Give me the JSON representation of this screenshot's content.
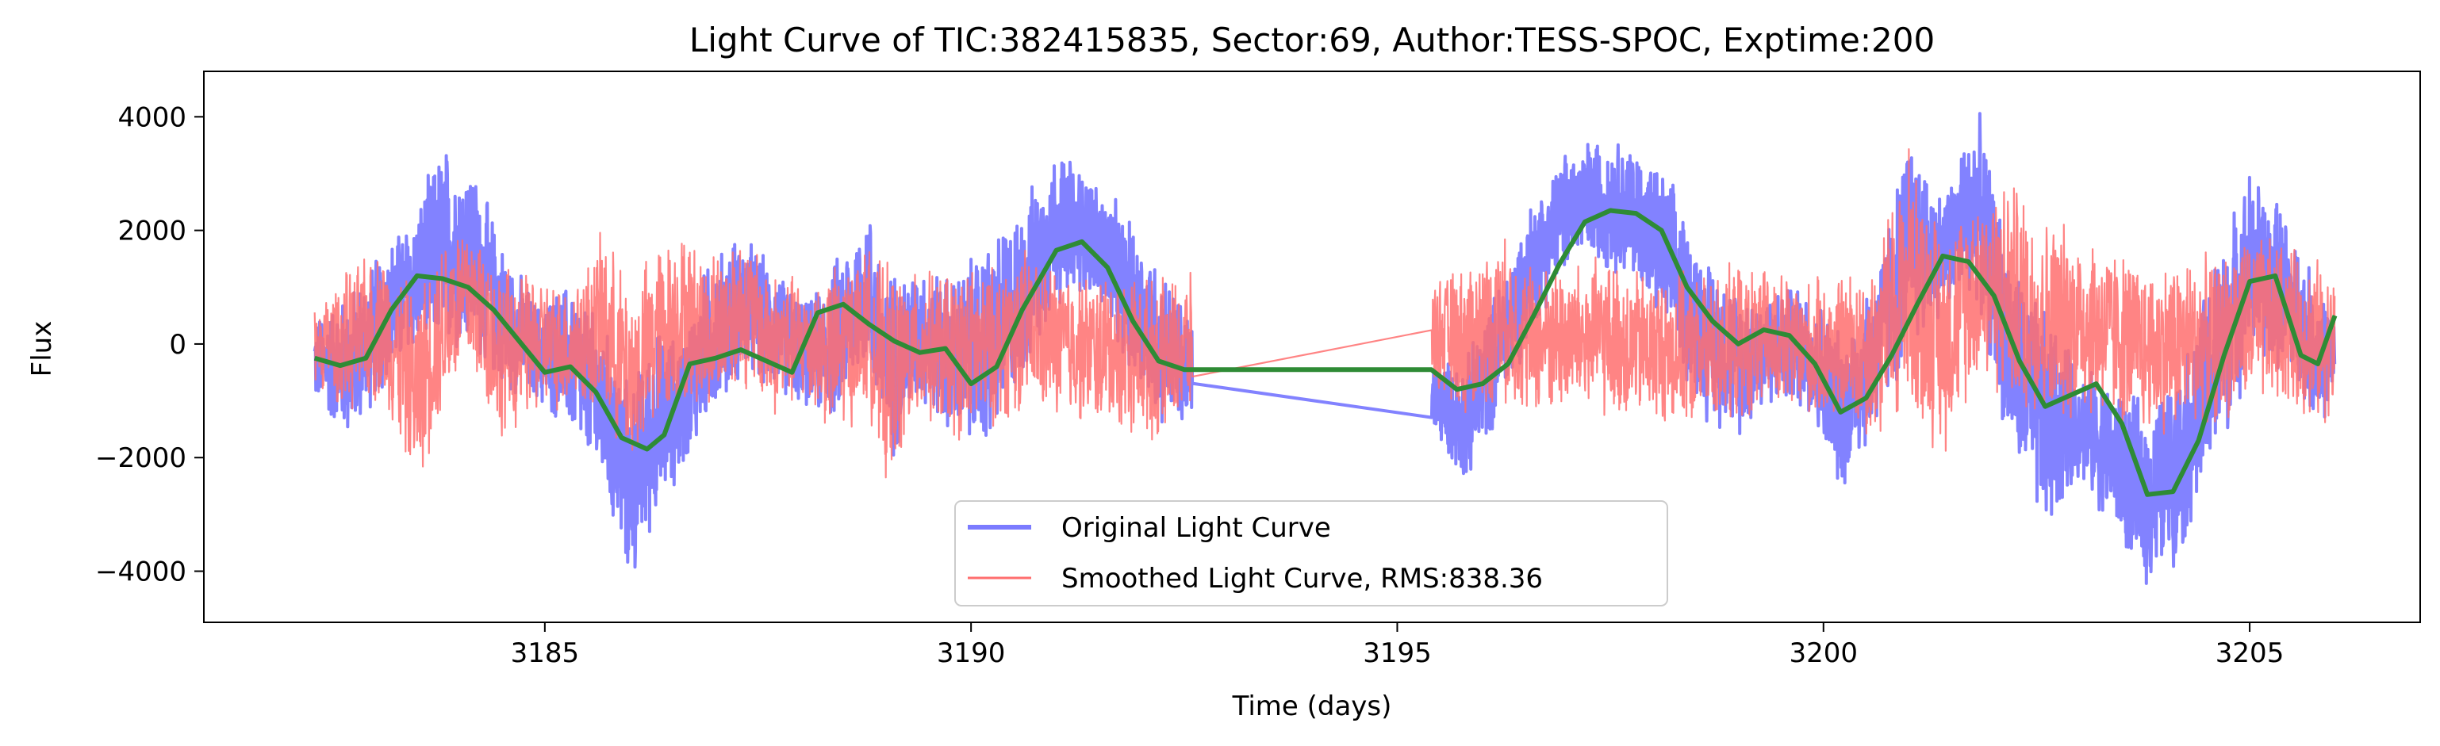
{
  "chart_data": {
    "type": "line",
    "title": "Light Curve of TIC:382415835, Sector:69, Author:TESS-SPOC, Exptime:200",
    "xlabel": "Time (days)",
    "ylabel": "Flux",
    "xlim": [
      3181.0,
      3207.0
    ],
    "ylim": [
      -4900,
      4800
    ],
    "x_ticks": [
      3185,
      3190,
      3195,
      3200,
      3205
    ],
    "x_tick_labels": [
      "3185",
      "3190",
      "3195",
      "3200",
      "3205"
    ],
    "y_ticks": [
      -4000,
      -2000,
      0,
      2000,
      4000
    ],
    "y_tick_labels": [
      "−4000",
      "−2000",
      "0",
      "2000",
      "4000"
    ],
    "grid": false,
    "legend_position": "bottom-center",
    "series": [
      {
        "name": "Original Light Curve",
        "color": "#7b7bff",
        "envelope": [
          [
            3182.3,
            -1100,
            500
          ],
          [
            3182.7,
            -1800,
            1000
          ],
          [
            3183.1,
            -900,
            1800
          ],
          [
            3183.5,
            -200,
            2500
          ],
          [
            3183.8,
            -300,
            3700
          ],
          [
            3184.1,
            -200,
            3500
          ],
          [
            3184.5,
            -900,
            1900
          ],
          [
            3184.9,
            -1100,
            800
          ],
          [
            3185.3,
            -1700,
            1200
          ],
          [
            3185.7,
            -2800,
            400
          ],
          [
            3186.0,
            -4400,
            -600
          ],
          [
            3186.3,
            -3200,
            400
          ],
          [
            3186.6,
            -2400,
            200
          ],
          [
            3186.9,
            -1500,
            1500
          ],
          [
            3187.3,
            -700,
            2100
          ],
          [
            3187.7,
            -900,
            1400
          ],
          [
            3188.1,
            -1200,
            800
          ],
          [
            3188.4,
            -1500,
            1600
          ],
          [
            3188.8,
            -400,
            2500
          ],
          [
            3189.0,
            -2400,
            1400
          ],
          [
            3189.4,
            -1100,
            1500
          ],
          [
            3189.8,
            -1800,
            1300
          ],
          [
            3190.2,
            -2100,
            2000
          ],
          [
            3190.6,
            -800,
            2600
          ],
          [
            3191.0,
            600,
            3600
          ],
          [
            3191.4,
            800,
            3100
          ],
          [
            3191.8,
            -400,
            2400
          ],
          [
            3192.2,
            -1500,
            1600
          ],
          [
            3192.6,
            -1700,
            500
          ],
          [
            3195.4,
            -1500,
            -300
          ],
          [
            3195.8,
            -2600,
            -200
          ],
          [
            3196.2,
            -1300,
            1200
          ],
          [
            3196.6,
            200,
            2700
          ],
          [
            3197.0,
            1300,
            3500
          ],
          [
            3197.4,
            1300,
            3800
          ],
          [
            3197.8,
            1000,
            3600
          ],
          [
            3198.2,
            -200,
            3000
          ],
          [
            3198.6,
            -1400,
            1700
          ],
          [
            3199.0,
            -1700,
            1100
          ],
          [
            3199.4,
            -1100,
            1000
          ],
          [
            3199.8,
            -1300,
            1200
          ],
          [
            3200.2,
            -2700,
            300
          ],
          [
            3200.6,
            -1700,
            1400
          ],
          [
            3201.0,
            -400,
            3900
          ],
          [
            3201.4,
            500,
            2700
          ],
          [
            3201.8,
            700,
            4300
          ],
          [
            3202.2,
            -2200,
            1700
          ],
          [
            3202.6,
            -3600,
            700
          ],
          [
            3203.0,
            -2400,
            -300
          ],
          [
            3203.4,
            -3400,
            -600
          ],
          [
            3203.8,
            -4400,
            -1000
          ],
          [
            3204.2,
            -3800,
            -300
          ],
          [
            3204.6,
            -2400,
            1700
          ],
          [
            3205.0,
            -400,
            3200
          ],
          [
            3205.4,
            -600,
            2500
          ],
          [
            3205.8,
            -1500,
            1100
          ],
          [
            3206.0,
            -1200,
            600
          ]
        ]
      },
      {
        "name": "Smoothed Light Curve, RMS:838.36",
        "color": "#ff6e6e",
        "envelope": [
          [
            3182.3,
            -700,
            700
          ],
          [
            3182.7,
            -1300,
            1400
          ],
          [
            3183.1,
            -1100,
            1800
          ],
          [
            3183.5,
            -2700,
            1000
          ],
          [
            3183.8,
            -1300,
            2100
          ],
          [
            3184.1,
            -600,
            2400
          ],
          [
            3184.5,
            -1800,
            1500
          ],
          [
            3184.9,
            -1300,
            1300
          ],
          [
            3185.3,
            -1200,
            1100
          ],
          [
            3185.7,
            -1400,
            2100
          ],
          [
            3186.0,
            -2400,
            1100
          ],
          [
            3186.3,
            -1700,
            1900
          ],
          [
            3186.6,
            -1100,
            2100
          ],
          [
            3186.9,
            -1300,
            1700
          ],
          [
            3187.3,
            -800,
            2100
          ],
          [
            3187.7,
            -1400,
            1400
          ],
          [
            3188.1,
            -1100,
            1200
          ],
          [
            3188.4,
            -1800,
            1500
          ],
          [
            3188.8,
            -1200,
            1800
          ],
          [
            3189.0,
            -2800,
            1500
          ],
          [
            3189.4,
            -1400,
            1300
          ],
          [
            3189.8,
            -1800,
            1500
          ],
          [
            3190.2,
            -1600,
            1400
          ],
          [
            3190.6,
            -1300,
            1800
          ],
          [
            3191.0,
            -1400,
            1500
          ],
          [
            3191.4,
            -1500,
            1300
          ],
          [
            3191.8,
            -1600,
            1400
          ],
          [
            3192.2,
            -1800,
            1200
          ],
          [
            3192.6,
            -1300,
            1300
          ],
          [
            3195.4,
            -800,
            1200
          ],
          [
            3195.8,
            -1400,
            1500
          ],
          [
            3196.2,
            -1100,
            2000
          ],
          [
            3196.6,
            -1400,
            1500
          ],
          [
            3197.0,
            -1300,
            1500
          ],
          [
            3197.4,
            -1400,
            1600
          ],
          [
            3197.8,
            -1500,
            1400
          ],
          [
            3198.2,
            -1500,
            1300
          ],
          [
            3198.6,
            -1600,
            1300
          ],
          [
            3199.0,
            -1500,
            1500
          ],
          [
            3199.4,
            -1300,
            1400
          ],
          [
            3199.8,
            -1400,
            1200
          ],
          [
            3200.2,
            -1500,
            1300
          ],
          [
            3200.6,
            -1900,
            1700
          ],
          [
            3201.0,
            -1500,
            3700
          ],
          [
            3201.4,
            -2100,
            2200
          ],
          [
            3201.8,
            -700,
            2900
          ],
          [
            3202.2,
            -1300,
            3100
          ],
          [
            3202.6,
            -1600,
            2400
          ],
          [
            3203.0,
            -1400,
            2200
          ],
          [
            3203.4,
            -1500,
            1900
          ],
          [
            3203.8,
            -1700,
            1500
          ],
          [
            3204.2,
            -1700,
            1700
          ],
          [
            3204.6,
            -1500,
            1600
          ],
          [
            3205.0,
            -1300,
            2100
          ],
          [
            3205.4,
            -1200,
            1900
          ],
          [
            3205.8,
            -1500,
            1600
          ],
          [
            3206.0,
            -1400,
            1300
          ]
        ]
      },
      {
        "color": "#2e8b35",
        "points": [
          [
            3182.3,
            -250
          ],
          [
            3182.6,
            -380
          ],
          [
            3182.9,
            -250
          ],
          [
            3183.2,
            600
          ],
          [
            3183.5,
            1200
          ],
          [
            3183.8,
            1150
          ],
          [
            3184.1,
            1000
          ],
          [
            3184.4,
            600
          ],
          [
            3184.7,
            50
          ],
          [
            3185.0,
            -500
          ],
          [
            3185.3,
            -400
          ],
          [
            3185.6,
            -850
          ],
          [
            3185.9,
            -1650
          ],
          [
            3186.2,
            -1850
          ],
          [
            3186.4,
            -1600
          ],
          [
            3186.7,
            -350
          ],
          [
            3187.0,
            -250
          ],
          [
            3187.3,
            -100
          ],
          [
            3187.6,
            -300
          ],
          [
            3187.9,
            -500
          ],
          [
            3188.2,
            550
          ],
          [
            3188.5,
            700
          ],
          [
            3188.8,
            350
          ],
          [
            3189.1,
            50
          ],
          [
            3189.4,
            -150
          ],
          [
            3189.7,
            -80
          ],
          [
            3190.0,
            -700
          ],
          [
            3190.3,
            -400
          ],
          [
            3190.6,
            600
          ],
          [
            3191.0,
            1650
          ],
          [
            3191.3,
            1800
          ],
          [
            3191.6,
            1350
          ],
          [
            3191.9,
            400
          ],
          [
            3192.2,
            -300
          ],
          [
            3192.5,
            -450
          ],
          [
            3195.4,
            -450
          ],
          [
            3195.7,
            -800
          ],
          [
            3196.0,
            -700
          ],
          [
            3196.3,
            -350
          ],
          [
            3196.6,
            500
          ],
          [
            3196.9,
            1400
          ],
          [
            3197.2,
            2150
          ],
          [
            3197.5,
            2350
          ],
          [
            3197.8,
            2300
          ],
          [
            3198.1,
            2000
          ],
          [
            3198.4,
            1000
          ],
          [
            3198.7,
            400
          ],
          [
            3199.0,
            0
          ],
          [
            3199.3,
            250
          ],
          [
            3199.6,
            150
          ],
          [
            3199.9,
            -350
          ],
          [
            3200.2,
            -1200
          ],
          [
            3200.5,
            -950
          ],
          [
            3200.8,
            -200
          ],
          [
            3201.1,
            700
          ],
          [
            3201.4,
            1550
          ],
          [
            3201.7,
            1450
          ],
          [
            3202.0,
            850
          ],
          [
            3202.3,
            -300
          ],
          [
            3202.6,
            -1100
          ],
          [
            3202.9,
            -900
          ],
          [
            3203.2,
            -700
          ],
          [
            3203.5,
            -1400
          ],
          [
            3203.8,
            -2650
          ],
          [
            3204.1,
            -2600
          ],
          [
            3204.4,
            -1700
          ],
          [
            3204.7,
            -200
          ],
          [
            3205.0,
            1100
          ],
          [
            3205.3,
            1200
          ],
          [
            3205.6,
            -200
          ],
          [
            3205.8,
            -350
          ],
          [
            3206.0,
            500
          ]
        ]
      }
    ]
  }
}
